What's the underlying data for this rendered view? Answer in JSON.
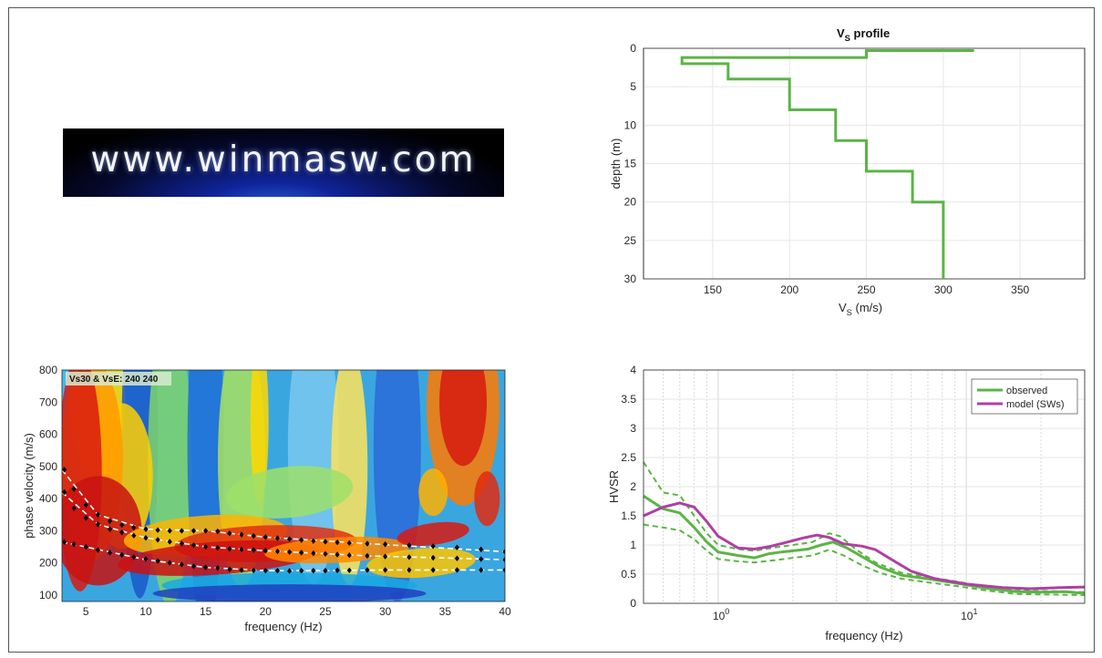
{
  "logo": {
    "text": "www.winmasw.com"
  },
  "chart_data": [
    {
      "type": "line",
      "title": "V",
      "title_subscript": "S",
      "title_suffix": " profile",
      "xlabel": "V",
      "xlabel_subscript": "S",
      "xlabel_suffix": " (m/s)",
      "ylabel": "depth (m)",
      "xlim": [
        105,
        392
      ],
      "ylim": [
        0,
        30
      ],
      "y_reversed": true,
      "xticks": [
        150,
        200,
        250,
        300,
        350
      ],
      "yticks": [
        0,
        5,
        10,
        15,
        20,
        25,
        30
      ],
      "grid": true,
      "color": "#5bb445",
      "series": [
        {
          "values": [
            [
              320,
              0.3
            ],
            [
              250,
              0.3
            ],
            [
              250,
              1.2
            ],
            [
              130,
              1.2
            ],
            [
              130,
              2
            ],
            [
              160,
              2
            ],
            [
              160,
              4
            ],
            [
              200,
              4
            ],
            [
              200,
              8
            ],
            [
              230,
              8
            ],
            [
              230,
              12
            ],
            [
              250,
              12
            ],
            [
              250,
              16
            ],
            [
              280,
              16
            ],
            [
              280,
              20
            ],
            [
              300,
              20
            ],
            [
              300,
              30
            ]
          ]
        }
      ]
    },
    {
      "type": "heatmap",
      "xlabel": "frequency (Hz)",
      "ylabel": "phase velocity (m/s)",
      "xlim": [
        3,
        40
      ],
      "ylim": [
        80,
        800
      ],
      "xticks": [
        5,
        10,
        15,
        20,
        25,
        30,
        35,
        40
      ],
      "yticks": [
        100,
        200,
        300,
        400,
        500,
        600,
        700,
        800
      ],
      "annotation": "Vs30 & VsE: 240  240",
      "picked_points": [
        [
          3.2,
          265
        ],
        [
          4,
          258
        ],
        [
          5,
          250
        ],
        [
          6,
          240
        ],
        [
          7,
          232
        ],
        [
          8,
          225
        ],
        [
          9,
          218
        ],
        [
          10,
          212
        ],
        [
          11,
          206
        ],
        [
          12,
          200
        ],
        [
          13,
          195
        ],
        [
          14,
          190
        ],
        [
          15,
          186
        ],
        [
          16,
          184
        ],
        [
          17,
          180
        ],
        [
          18,
          178
        ],
        [
          19,
          177
        ],
        [
          20,
          176
        ],
        [
          21,
          176
        ],
        [
          22,
          175
        ],
        [
          23,
          176
        ],
        [
          24,
          176
        ],
        [
          25,
          176
        ],
        [
          26,
          177
        ],
        [
          27,
          177
        ],
        [
          28.5,
          178
        ],
        [
          30,
          178
        ],
        [
          32,
          178
        ],
        [
          34,
          178
        ],
        [
          36,
          178
        ],
        [
          38,
          178
        ],
        [
          40,
          178
        ],
        [
          3.2,
          420
        ],
        [
          4,
          370
        ],
        [
          5,
          340
        ],
        [
          6,
          320
        ],
        [
          7,
          305
        ],
        [
          8,
          295
        ],
        [
          9,
          285
        ],
        [
          10,
          278
        ],
        [
          11,
          272
        ],
        [
          12,
          266
        ],
        [
          13,
          260
        ],
        [
          14,
          255
        ],
        [
          15,
          250
        ],
        [
          16,
          247
        ],
        [
          17,
          244
        ],
        [
          18,
          242
        ],
        [
          19,
          240
        ],
        [
          20,
          238
        ],
        [
          21,
          236
        ],
        [
          22,
          234
        ],
        [
          23,
          232
        ],
        [
          24,
          230
        ],
        [
          25,
          228
        ],
        [
          26,
          226
        ],
        [
          27,
          224
        ],
        [
          28.5,
          222
        ],
        [
          30,
          220
        ],
        [
          32,
          218
        ],
        [
          34,
          216
        ],
        [
          36,
          214
        ],
        [
          38,
          212
        ],
        [
          40,
          210
        ],
        [
          3.2,
          490
        ],
        [
          4,
          430
        ],
        [
          5,
          380
        ],
        [
          6,
          350
        ],
        [
          7,
          330
        ],
        [
          8,
          318
        ],
        [
          9,
          310
        ],
        [
          10,
          305
        ],
        [
          11,
          302
        ],
        [
          12,
          300
        ],
        [
          13,
          300
        ],
        [
          14,
          300
        ],
        [
          15,
          300
        ],
        [
          16,
          298
        ],
        [
          17,
          292
        ],
        [
          18,
          288
        ],
        [
          19,
          284
        ],
        [
          20,
          280
        ],
        [
          21,
          277
        ],
        [
          22,
          274
        ],
        [
          23,
          271
        ],
        [
          24,
          268
        ],
        [
          25,
          266
        ],
        [
          26,
          264
        ],
        [
          27,
          262
        ],
        [
          28.5,
          260
        ],
        [
          30,
          258
        ],
        [
          32,
          255
        ],
        [
          34,
          252
        ],
        [
          36,
          248
        ],
        [
          38,
          242
        ],
        [
          40,
          235
        ]
      ],
      "model_curves": [
        [
          [
            3,
            265
          ],
          [
            6,
            242
          ],
          [
            10,
            210
          ],
          [
            15,
            186
          ],
          [
            20,
            176
          ],
          [
            25,
            176
          ],
          [
            30,
            178
          ],
          [
            40,
            178
          ]
        ],
        [
          [
            3,
            420
          ],
          [
            6,
            320
          ],
          [
            10,
            278
          ],
          [
            15,
            250
          ],
          [
            20,
            238
          ],
          [
            28.5,
            222
          ],
          [
            40,
            210
          ]
        ],
        [
          [
            3,
            490
          ],
          [
            6,
            350
          ],
          [
            10,
            305
          ],
          [
            15,
            300
          ],
          [
            20,
            280
          ],
          [
            28.5,
            260
          ],
          [
            40,
            235
          ]
        ]
      ]
    },
    {
      "type": "line",
      "xlabel": "frequency (Hz)",
      "ylabel": "HVSR",
      "x_scale": "log",
      "xlim": [
        0.5,
        30
      ],
      "ylim": [
        0,
        4
      ],
      "yticks": [
        0,
        0.5,
        1,
        1.5,
        2,
        2.5,
        3,
        3.5,
        4
      ],
      "xticks_major": [
        1,
        10
      ],
      "grid": true,
      "legend_position": "top-right",
      "series": [
        {
          "name": "observed",
          "color": "#5bb445",
          "values": [
            [
              0.5,
              1.84
            ],
            [
              0.6,
              1.62
            ],
            [
              0.7,
              1.55
            ],
            [
              0.8,
              1.3
            ],
            [
              0.9,
              1.05
            ],
            [
              1,
              0.88
            ],
            [
              1.2,
              0.82
            ],
            [
              1.4,
              0.78
            ],
            [
              1.6,
              0.85
            ],
            [
              1.8,
              0.88
            ],
            [
              2,
              0.9
            ],
            [
              2.3,
              0.93
            ],
            [
              2.6,
              1.0
            ],
            [
              2.9,
              1.05
            ],
            [
              3.3,
              0.95
            ],
            [
              3.8,
              0.8
            ],
            [
              4.5,
              0.62
            ],
            [
              5.5,
              0.48
            ],
            [
              7,
              0.42
            ],
            [
              9,
              0.35
            ],
            [
              12,
              0.26
            ],
            [
              16,
              0.2
            ],
            [
              20,
              0.19
            ],
            [
              25,
              0.2
            ],
            [
              30,
              0.17
            ]
          ]
        },
        {
          "name": "model (SWs)",
          "color": "#b03ea6",
          "values": [
            [
              0.5,
              1.5
            ],
            [
              0.6,
              1.65
            ],
            [
              0.7,
              1.72
            ],
            [
              0.8,
              1.65
            ],
            [
              0.9,
              1.4
            ],
            [
              1,
              1.15
            ],
            [
              1.2,
              0.95
            ],
            [
              1.4,
              0.93
            ],
            [
              1.6,
              0.97
            ],
            [
              1.9,
              1.05
            ],
            [
              2.2,
              1.12
            ],
            [
              2.5,
              1.17
            ],
            [
              2.8,
              1.13
            ],
            [
              3.2,
              1.02
            ],
            [
              3.8,
              0.98
            ],
            [
              4.3,
              0.92
            ],
            [
              5,
              0.75
            ],
            [
              6,
              0.55
            ],
            [
              7.5,
              0.42
            ],
            [
              10,
              0.33
            ],
            [
              14,
              0.27
            ],
            [
              18,
              0.25
            ],
            [
              24,
              0.27
            ],
            [
              30,
              0.28
            ]
          ]
        }
      ],
      "band": {
        "color": "#5bb445",
        "upper": [
          [
            0.5,
            2.42
          ],
          [
            0.6,
            1.9
          ],
          [
            0.7,
            1.85
          ],
          [
            0.8,
            1.5
          ],
          [
            0.9,
            1.2
          ],
          [
            1,
            1.0
          ],
          [
            1.2,
            0.93
          ],
          [
            1.4,
            0.9
          ],
          [
            1.7,
            0.96
          ],
          [
            2,
            1.0
          ],
          [
            2.4,
            1.05
          ],
          [
            2.8,
            1.2
          ],
          [
            3.1,
            1.15
          ],
          [
            3.6,
            0.92
          ],
          [
            4.3,
            0.7
          ],
          [
            5.5,
            0.52
          ],
          [
            7,
            0.45
          ],
          [
            9,
            0.38
          ],
          [
            12,
            0.28
          ],
          [
            16,
            0.22
          ],
          [
            22,
            0.21
          ],
          [
            30,
            0.19
          ]
        ],
        "lower": [
          [
            0.5,
            1.35
          ],
          [
            0.6,
            1.3
          ],
          [
            0.7,
            1.25
          ],
          [
            0.8,
            1.1
          ],
          [
            0.9,
            0.9
          ],
          [
            1,
            0.76
          ],
          [
            1.2,
            0.72
          ],
          [
            1.4,
            0.7
          ],
          [
            1.7,
            0.74
          ],
          [
            2,
            0.78
          ],
          [
            2.4,
            0.82
          ],
          [
            2.8,
            0.92
          ],
          [
            3.2,
            0.82
          ],
          [
            3.8,
            0.65
          ],
          [
            4.5,
            0.52
          ],
          [
            5.5,
            0.42
          ],
          [
            7,
            0.36
          ],
          [
            9,
            0.3
          ],
          [
            12,
            0.22
          ],
          [
            16,
            0.16
          ],
          [
            22,
            0.15
          ],
          [
            30,
            0.14
          ]
        ]
      }
    }
  ]
}
